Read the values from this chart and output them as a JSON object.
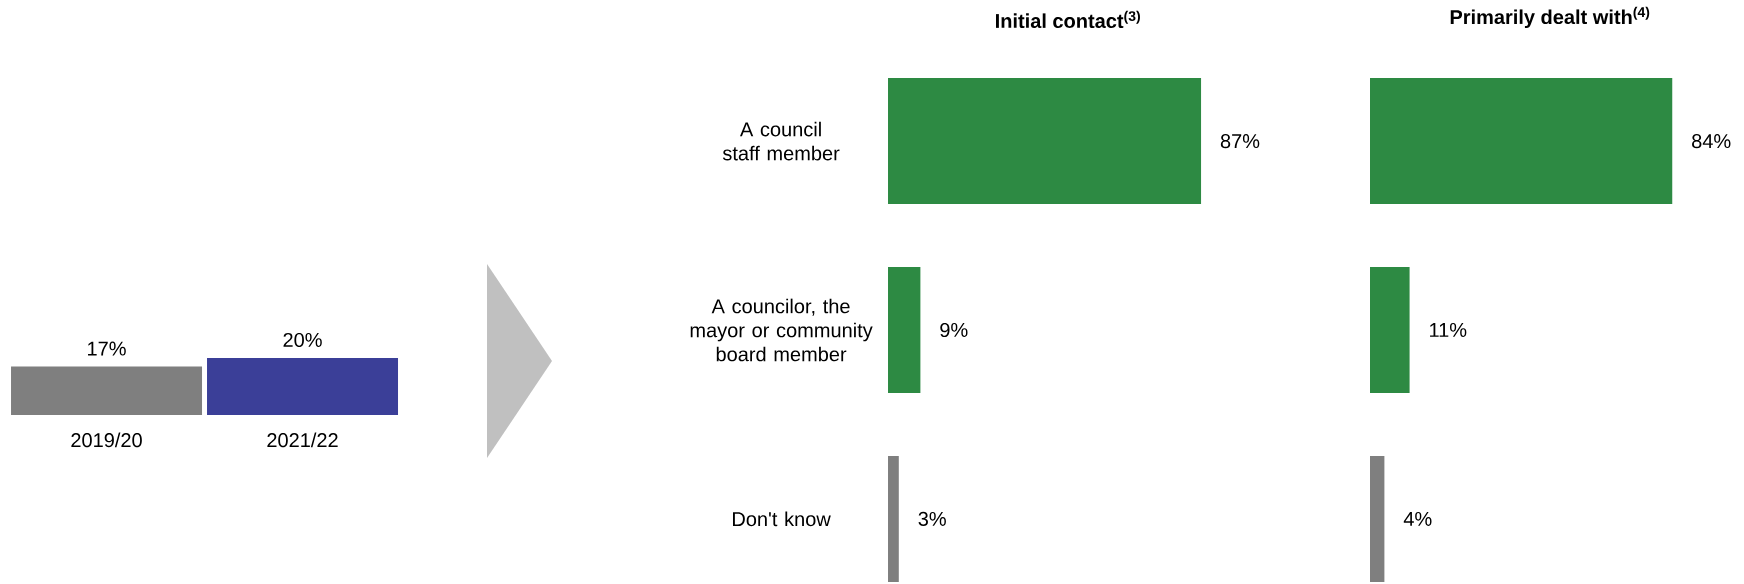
{
  "chart_data": [
    {
      "type": "bar",
      "categories": [
        "2019/20",
        "2021/22"
      ],
      "values": [
        17,
        20
      ],
      "colors": [
        "#7f7f7f",
        "#3b3f98"
      ],
      "value_labels": [
        "17%",
        "20%"
      ]
    },
    {
      "type": "bar",
      "orientation": "horizontal",
      "title": "Initial contact$^{(3)}$",
      "categories": [
        "A council staff member",
        "A councilor, the mayor or community board member",
        "Don't know"
      ],
      "values": [
        87,
        9,
        3
      ],
      "colors": [
        "#2d8a43",
        "#2d8a43",
        "#7f7f7f"
      ],
      "value_labels": [
        "87%",
        "9%",
        "3%"
      ]
    },
    {
      "type": "bar",
      "orientation": "horizontal",
      "title": "Primarily dealt with$^{(4)}$",
      "categories": [
        null,
        null,
        null
      ],
      "values": [
        84,
        11,
        4
      ],
      "colors": [
        "#2d8a43",
        "#2d8a43",
        "#7f7f7f"
      ],
      "value_labels": [
        "84%",
        "11%",
        "4%"
      ]
    }
  ]
}
